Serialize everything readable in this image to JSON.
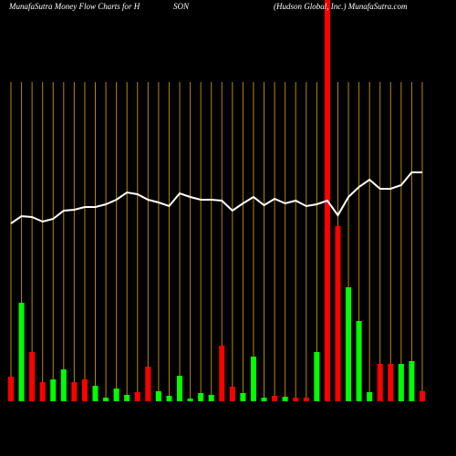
{
  "chart_data": {
    "type": "bar",
    "title_parts": [
      "MunafaSutra  Money Flow  Charts for H",
      "SON",
      "(Hudson  Global,  Inc.) MunafaSutra.com"
    ],
    "ylim": [
      0,
      440
    ],
    "highlight_index": 30,
    "highlight_color": "#ff0000",
    "grid": true,
    "grid_color": "#b8860b",
    "series": [
      {
        "name": "money flow",
        "values": [
          27,
          108,
          54,
          21,
          24,
          35,
          21,
          24,
          17,
          4,
          14,
          7,
          10,
          38,
          11,
          6,
          28,
          3,
          9,
          7,
          61,
          16,
          9,
          49,
          4,
          6,
          5,
          4,
          4,
          54,
          null,
          192,
          125,
          88,
          10,
          41,
          41,
          41,
          44,
          11
        ],
        "colors": [
          "#ff0000",
          "#00ff00",
          "#ff0000",
          "#ff0000",
          "#00ff00",
          "#00ff00",
          "#ff0000",
          "#ff0000",
          "#00ff00",
          "#00ff00",
          "#00ff00",
          "#00ff00",
          "#ff0000",
          "#ff0000",
          "#00ff00",
          "#00ff00",
          "#00ff00",
          "#00ff00",
          "#00ff00",
          "#00ff00",
          "#ff0000",
          "#ff0000",
          "#00ff00",
          "#00ff00",
          "#00ff00",
          "#ff0000",
          "#00ff00",
          "#ff0000",
          "#ff0000",
          "#00ff00",
          null,
          "#ff0000",
          "#00ff00",
          "#00ff00",
          "#00ff00",
          "#ff0000",
          "#ff0000",
          "#00ff00",
          "#00ff00",
          "#ff0000"
        ]
      },
      {
        "name": "price",
        "color": "#ffffff",
        "values": [
          195,
          203,
          202,
          197,
          200,
          209,
          210,
          213,
          213,
          216,
          221,
          229,
          227,
          221,
          218,
          214,
          228,
          224,
          221,
          221,
          220,
          209,
          217,
          224,
          215,
          222,
          217,
          220,
          214,
          216,
          220,
          204,
          224,
          235,
          243,
          233,
          233,
          237,
          251,
          251
        ]
      }
    ]
  }
}
